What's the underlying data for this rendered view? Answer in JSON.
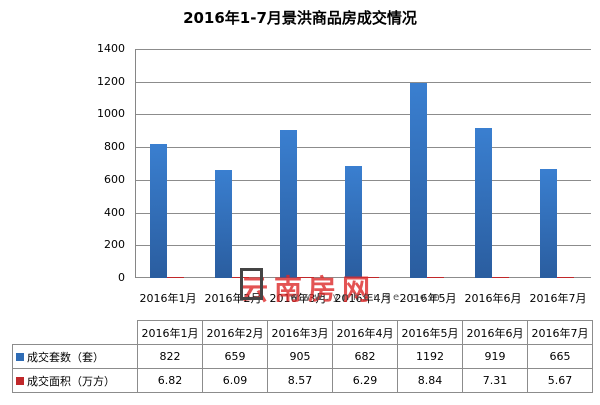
{
  "chart_data": {
    "type": "bar",
    "title": "2016年1-7月景洪商品房成交情况",
    "categories": [
      "2016年1月",
      "2016年2月",
      "2016年3月",
      "2016年4月",
      "2016年5月",
      "2016年6月",
      "2016年7月"
    ],
    "series": [
      {
        "name": "成交套数（套）",
        "color": "#2f6cb5",
        "values": [
          822,
          659,
          905,
          682,
          1192,
          919,
          665
        ]
      },
      {
        "name": "成交面积（万方）",
        "color": "#c0282a",
        "values": [
          6.82,
          6.09,
          8.57,
          6.29,
          8.84,
          7.31,
          5.67
        ]
      }
    ],
    "xlabel": "",
    "ylabel": "",
    "ylim": [
      0,
      1400
    ],
    "yticks": [
      0,
      200,
      400,
      600,
      800,
      1000,
      1200,
      1400
    ],
    "grid": true,
    "legend_position": "data-table-below"
  },
  "title": "2016年1-7月景洪商品房成交情况",
  "yticks": [
    "1400",
    "1200",
    "1000",
    "800",
    "600",
    "400",
    "200",
    "0"
  ],
  "categories": [
    "2016年1月",
    "2016年2月",
    "2016年3月",
    "2016年4月",
    "2016年5月",
    "2016年6月",
    "2016年7月"
  ],
  "table": {
    "rows": [
      {
        "label": "成交套数（套）",
        "color": "#2f6cb5",
        "values": [
          "822",
          "659",
          "905",
          "682",
          "1192",
          "919",
          "665"
        ]
      },
      {
        "label": "成交面积（万方）",
        "color": "#c0282a",
        "values": [
          "6.82",
          "6.09",
          "8.57",
          "6.29",
          "8.84",
          "7.31",
          "5.67"
        ]
      }
    ]
  },
  "watermark": {
    "text": "云南房网",
    "url": "www.ynhouse.com"
  }
}
